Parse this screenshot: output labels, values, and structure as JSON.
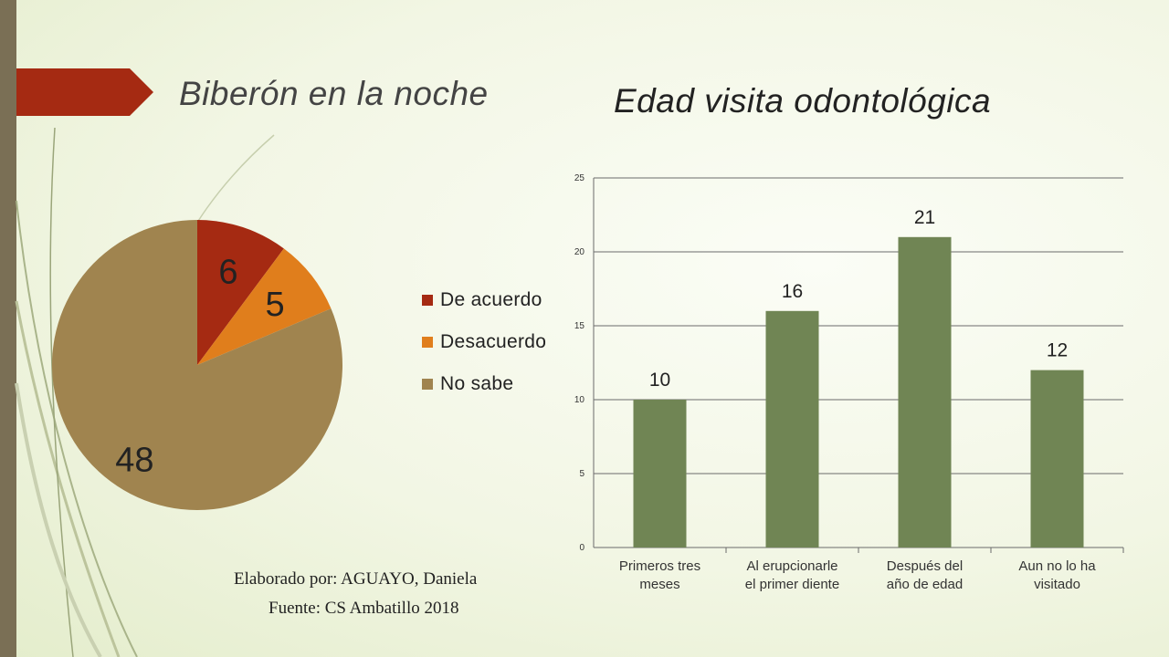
{
  "slide": {
    "accent_color": "#a52a12",
    "sidebar_color": "#7a6f55",
    "background_color": "#f2f6e4"
  },
  "credits": {
    "author": "Elaborado por: AGUAYO, Daniela",
    "source": "Fuente: CS Ambatillo 2018"
  },
  "chart_data": [
    {
      "type": "pie",
      "title": "Biberón en la noche",
      "labels": [
        "De acuerdo",
        "Desacuerdo",
        "No sabe"
      ],
      "values": [
        6,
        5,
        48
      ],
      "data_labels": [
        "6",
        "5",
        "48"
      ],
      "colors": [
        "#a52a12",
        "#e07e1c",
        "#a0844f"
      ],
      "legend_position": "right"
    },
    {
      "type": "bar",
      "title": "Edad visita odontológica",
      "categories": [
        "Primeros tres meses",
        "Al erupcionarle el primer diente",
        "Después del año de edad",
        "Aun no lo ha visitado"
      ],
      "category_lines": [
        [
          "Primeros tres",
          "meses"
        ],
        [
          "Al erupcionarle",
          "el primer diente"
        ],
        [
          "Después del",
          "año de edad"
        ],
        [
          "Aun no lo ha",
          "visitado"
        ]
      ],
      "values": [
        10,
        16,
        21,
        12
      ],
      "data_labels": [
        "10",
        "16",
        "21",
        "12"
      ],
      "ylim": [
        0,
        25
      ],
      "yticks": [
        "0",
        "5",
        "10",
        "15",
        "20",
        "25"
      ],
      "grid": true,
      "bar_color": "#708554",
      "xlabel": "",
      "ylabel": ""
    }
  ]
}
